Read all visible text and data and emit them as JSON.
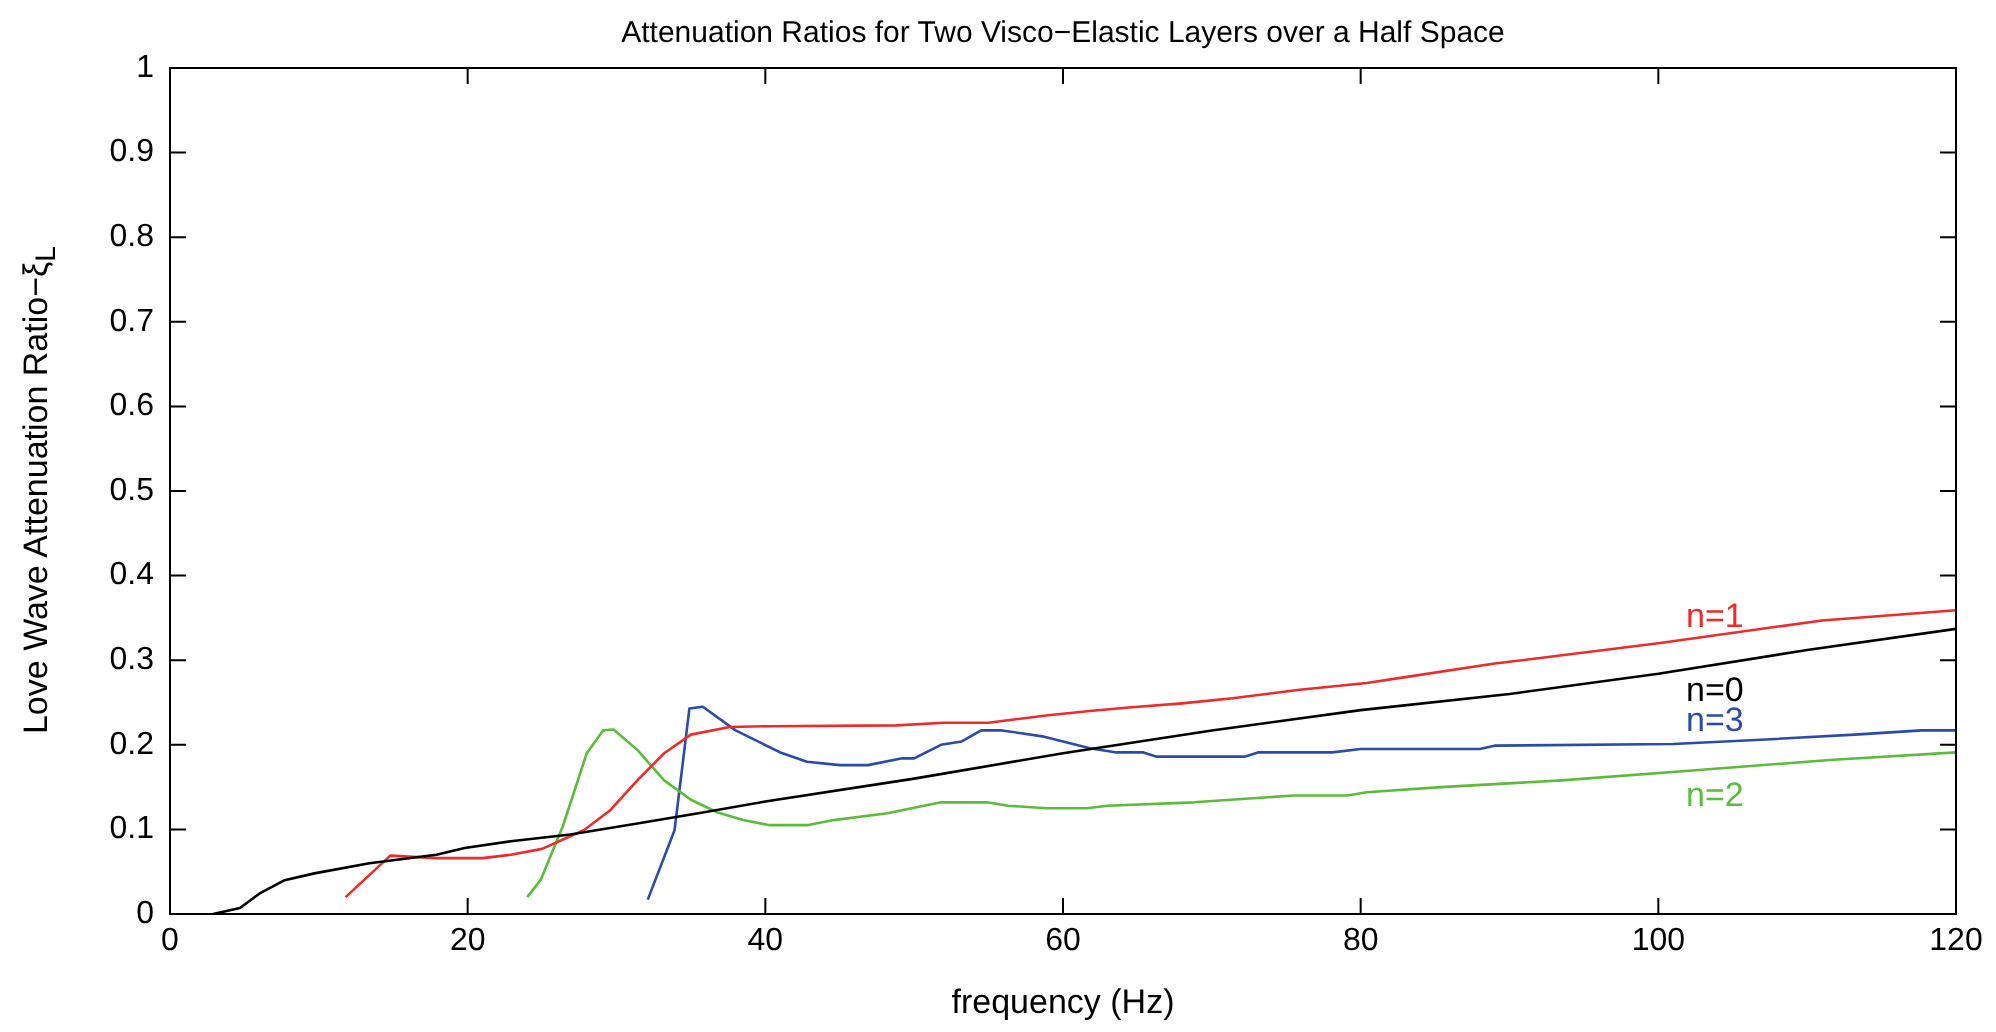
{
  "chart_data": {
    "type": "line",
    "title": "Attenuation Ratios for Two Visco−Elastic Layers over a Half Space",
    "xlabel": "frequency (Hz)",
    "ylabel": "Love Wave Attenuation Ratio−ξ$_{L}$",
    "xlim": [
      0,
      120
    ],
    "xticks": [
      0,
      20,
      40,
      60,
      80,
      100,
      120
    ],
    "ylim": [
      0,
      1
    ],
    "yticks": [
      0,
      0.1,
      0.2,
      0.3,
      0.4,
      0.5,
      0.6,
      0.7,
      0.8,
      0.9,
      1
    ],
    "grid": false,
    "legend": false,
    "marker": "none",
    "line_style": "solid",
    "series": [
      {
        "name": "n=0",
        "color": "#000000",
        "x": [
          2.9,
          4.7,
          6,
          7.7,
          9.7,
          13.4,
          17.9,
          19.8,
          22.9,
          26.9,
          31.4,
          35.8,
          40,
          50,
          60,
          70,
          80,
          90,
          100,
          110,
          120
        ],
        "values": [
          0,
          0.007,
          0.024,
          0.04,
          0.048,
          0.06,
          0.07,
          0.078,
          0.086,
          0.094,
          0.107,
          0.12,
          0.133,
          0.16,
          0.19,
          0.217,
          0.241,
          0.26,
          0.284,
          0.312,
          0.337
        ]
      },
      {
        "name": "n=1",
        "color": "#ee2b2b",
        "x": [
          11.8,
          14.8,
          17.9,
          21,
          22.9,
          25,
          27.8,
          29.6,
          31.4,
          33.2,
          35,
          37.6,
          40.3,
          48.8,
          52,
          55,
          56.3,
          59,
          61.8,
          64.4,
          68,
          71.4,
          75.9,
          80.4,
          83,
          89,
          100,
          111,
          120
        ],
        "values": [
          0.02,
          0.069,
          0.066,
          0.066,
          0.07,
          0.077,
          0.099,
          0.123,
          0.158,
          0.19,
          0.212,
          0.221,
          0.222,
          0.223,
          0.226,
          0.226,
          0.229,
          0.235,
          0.24,
          0.244,
          0.249,
          0.255,
          0.265,
          0.273,
          0.28,
          0.296,
          0.32,
          0.347,
          0.359
        ]
      },
      {
        "name": "n=2",
        "color": "#5dbb3c",
        "x": [
          24,
          24.9,
          26.4,
          28,
          29.1,
          29.8,
          31.4,
          33.2,
          35,
          36.8,
          38.5,
          40.3,
          42.8,
          44.6,
          48.2,
          51.8,
          54.9,
          56.3,
          58.9,
          61.6,
          63,
          68.8,
          72,
          75.5,
          79.1,
          80.4,
          85.4,
          93.5,
          102.5,
          111.5,
          120
        ],
        "values": [
          0.02,
          0.04,
          0.104,
          0.19,
          0.217,
          0.218,
          0.194,
          0.158,
          0.135,
          0.12,
          0.111,
          0.105,
          0.105,
          0.111,
          0.119,
          0.132,
          0.132,
          0.128,
          0.125,
          0.125,
          0.128,
          0.132,
          0.136,
          0.14,
          0.14,
          0.144,
          0.15,
          0.158,
          0.17,
          0.182,
          0.191
        ]
      },
      {
        "name": "n=3",
        "color": "#2c4ba8",
        "x": [
          32.1,
          33.9,
          34.9,
          35.8,
          38,
          41,
          42.8,
          45,
          46.9,
          49.2,
          50,
          51.8,
          53.2,
          54.5,
          55.9,
          58.6,
          61.8,
          63.6,
          65.4,
          66.3,
          72.2,
          73.1,
          78.1,
          80,
          88,
          89,
          101,
          106.9,
          113.2,
          117.7,
          120
        ],
        "values": [
          0.017,
          0.099,
          0.243,
          0.245,
          0.217,
          0.191,
          0.18,
          0.176,
          0.176,
          0.184,
          0.184,
          0.2,
          0.204,
          0.217,
          0.217,
          0.21,
          0.196,
          0.191,
          0.191,
          0.186,
          0.186,
          0.191,
          0.191,
          0.195,
          0.195,
          0.199,
          0.201,
          0.206,
          0.212,
          0.217,
          0.217
        ]
      }
    ]
  }
}
